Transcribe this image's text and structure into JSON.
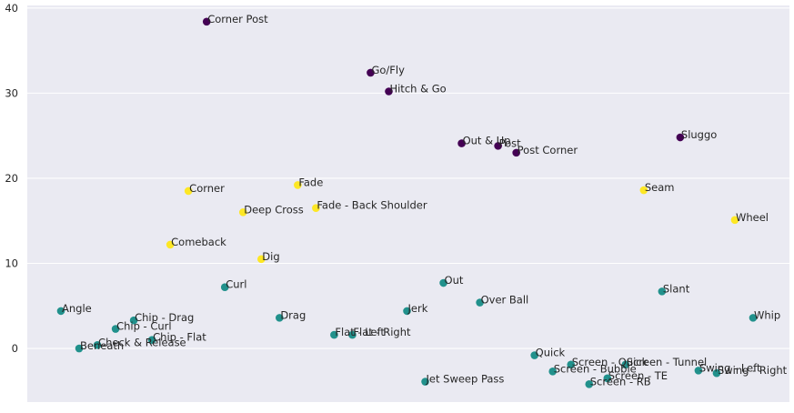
{
  "chart_data": {
    "type": "scatter",
    "title": "",
    "xlabel": "",
    "ylabel": "",
    "ylim": [
      -6.3,
      40.3
    ],
    "yticks": [
      0,
      10,
      20,
      30,
      40
    ],
    "grid": true,
    "legend": "none",
    "colors": {
      "background": "#eaeaf2",
      "grid": "#ffffff",
      "tick_text": "#262626",
      "cluster_dark": "#440154",
      "cluster_teal": "#21918c",
      "cluster_yellow": "#fde725"
    },
    "points": [
      {
        "label": "Angle",
        "x": 1,
        "y": 4.4,
        "group": "cluster_teal"
      },
      {
        "label": "Beneath",
        "x": 2,
        "y": 0.0,
        "group": "cluster_teal"
      },
      {
        "label": "Check & Release",
        "x": 3,
        "y": 0.4,
        "group": "cluster_teal"
      },
      {
        "label": "Chip - Curl",
        "x": 4,
        "y": 2.3,
        "group": "cluster_teal"
      },
      {
        "label": "Chip - Drag",
        "x": 5,
        "y": 3.3,
        "group": "cluster_teal"
      },
      {
        "label": "Chip - Flat",
        "x": 6,
        "y": 1.0,
        "group": "cluster_teal"
      },
      {
        "label": "Comeback",
        "x": 7,
        "y": 12.2,
        "group": "cluster_yellow"
      },
      {
        "label": "Corner",
        "x": 8,
        "y": 18.5,
        "group": "cluster_yellow"
      },
      {
        "label": "Corner Post",
        "x": 9,
        "y": 38.4,
        "group": "cluster_dark"
      },
      {
        "label": "Curl",
        "x": 10,
        "y": 7.2,
        "group": "cluster_teal"
      },
      {
        "label": "Deep Cross",
        "x": 11,
        "y": 16.0,
        "group": "cluster_yellow"
      },
      {
        "label": "Dig",
        "x": 12,
        "y": 10.5,
        "group": "cluster_yellow"
      },
      {
        "label": "Drag",
        "x": 13,
        "y": 3.6,
        "group": "cluster_teal"
      },
      {
        "label": "Fade",
        "x": 14,
        "y": 19.2,
        "group": "cluster_yellow"
      },
      {
        "label": "Fade - Back Shoulder",
        "x": 15,
        "y": 16.5,
        "group": "cluster_yellow"
      },
      {
        "label": "Flat - Left",
        "x": 16,
        "y": 1.6,
        "group": "cluster_teal"
      },
      {
        "label": "Flat - Right",
        "x": 17,
        "y": 1.6,
        "group": "cluster_teal"
      },
      {
        "label": "Go/Fly",
        "x": 18,
        "y": 32.4,
        "group": "cluster_dark"
      },
      {
        "label": "Hitch & Go",
        "x": 19,
        "y": 30.2,
        "group": "cluster_dark"
      },
      {
        "label": "Jerk",
        "x": 20,
        "y": 4.4,
        "group": "cluster_teal"
      },
      {
        "label": "Jet Sweep Pass",
        "x": 21,
        "y": -3.9,
        "group": "cluster_teal"
      },
      {
        "label": "Out",
        "x": 22,
        "y": 7.7,
        "group": "cluster_teal"
      },
      {
        "label": "Out & Up",
        "x": 23,
        "y": 24.1,
        "group": "cluster_dark"
      },
      {
        "label": "Over Ball",
        "x": 24,
        "y": 5.4,
        "group": "cluster_teal"
      },
      {
        "label": "Post",
        "x": 25,
        "y": 23.8,
        "group": "cluster_dark"
      },
      {
        "label": "Post Corner",
        "x": 26,
        "y": 23.0,
        "group": "cluster_dark"
      },
      {
        "label": "Quick",
        "x": 27,
        "y": -0.8,
        "group": "cluster_teal"
      },
      {
        "label": "Screen - Bubble",
        "x": 28,
        "y": -2.7,
        "group": "cluster_teal"
      },
      {
        "label": "Screen - Quick",
        "x": 29,
        "y": -1.9,
        "group": "cluster_teal"
      },
      {
        "label": "Screen - RB",
        "x": 30,
        "y": -4.2,
        "group": "cluster_teal"
      },
      {
        "label": "Screen - TE",
        "x": 31,
        "y": -3.5,
        "group": "cluster_teal"
      },
      {
        "label": "Screen - Tunnel",
        "x": 32,
        "y": -1.9,
        "group": "cluster_teal"
      },
      {
        "label": "Seam",
        "x": 33,
        "y": 18.6,
        "group": "cluster_yellow"
      },
      {
        "label": "Slant",
        "x": 34,
        "y": 6.7,
        "group": "cluster_teal"
      },
      {
        "label": "Sluggo",
        "x": 35,
        "y": 24.8,
        "group": "cluster_dark"
      },
      {
        "label": "Swing - Left",
        "x": 36,
        "y": -2.6,
        "group": "cluster_teal"
      },
      {
        "label": "Swing - Right",
        "x": 37,
        "y": -2.9,
        "group": "cluster_teal"
      },
      {
        "label": "Wheel",
        "x": 38,
        "y": 15.1,
        "group": "cluster_yellow"
      },
      {
        "label": "Whip",
        "x": 39,
        "y": 3.6,
        "group": "cluster_teal"
      }
    ]
  }
}
